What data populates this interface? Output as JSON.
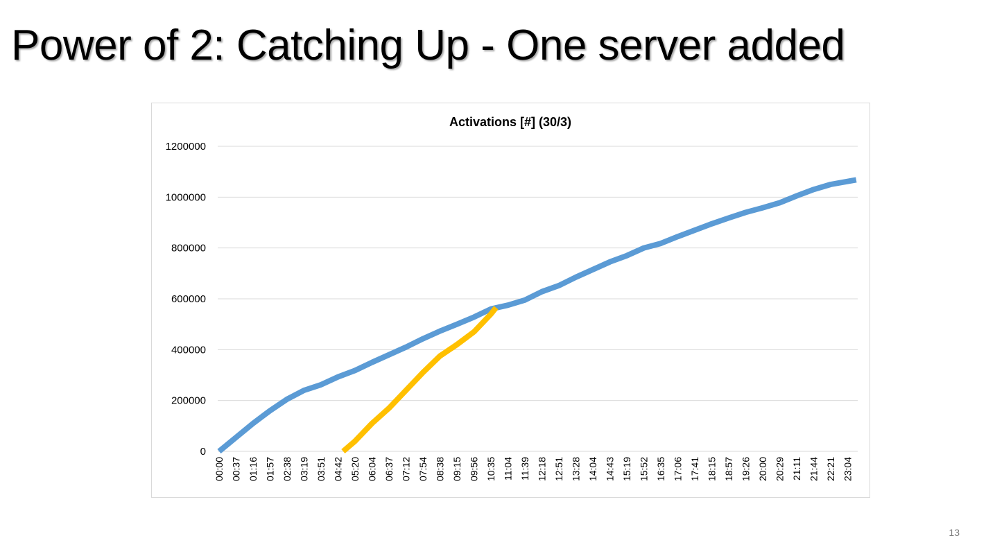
{
  "slide": {
    "title": "Power of 2: Catching Up - One server added",
    "page_number": "13"
  },
  "chart_data": {
    "type": "line",
    "title": "Activations [#] (30/3)",
    "xlabel": "",
    "ylabel": "",
    "ylim": [
      0,
      1200000
    ],
    "yticks": [
      0,
      200000,
      400000,
      600000,
      800000,
      1000000,
      1200000
    ],
    "grid": true,
    "legend": "none",
    "x_categories": [
      "00:00",
      "00:37",
      "01:16",
      "01:57",
      "02:38",
      "03:19",
      "03:51",
      "04:42",
      "05:20",
      "06:04",
      "06:37",
      "07:12",
      "07:54",
      "08:38",
      "09:15",
      "09:56",
      "10:35",
      "11:04",
      "11:39",
      "12:18",
      "12:51",
      "13:28",
      "14:04",
      "14:43",
      "15:19",
      "15:52",
      "16:35",
      "17:06",
      "17:41",
      "18:15",
      "18:57",
      "19:26",
      "20:00",
      "20:29",
      "21:11",
      "21:44",
      "22:21",
      "23:04"
    ],
    "series": [
      {
        "color": "#5b9bd5",
        "x_index": [
          0,
          1,
          2,
          3,
          4,
          5,
          6,
          7,
          8,
          9,
          10,
          11,
          12,
          13,
          14,
          15,
          16,
          17,
          18,
          19,
          20,
          21,
          22,
          23,
          24,
          25,
          26,
          27,
          28,
          29,
          30,
          31,
          32,
          33,
          34,
          35,
          36,
          37.5
        ],
        "values": [
          0,
          55000,
          110000,
          160000,
          205000,
          240000,
          262000,
          293000,
          318000,
          350000,
          380000,
          410000,
          443000,
          473000,
          500000,
          528000,
          560000,
          575000,
          595000,
          628000,
          652000,
          685000,
          715000,
          745000,
          770000,
          800000,
          818000,
          845000,
          870000,
          895000,
          918000,
          940000,
          958000,
          978000,
          1005000,
          1030000,
          1050000,
          1068000
        ]
      },
      {
        "color": "#ffc000",
        "x_index": [
          7.3,
          8,
          9,
          10,
          11,
          12,
          13,
          14,
          15,
          16,
          16.3
        ],
        "values": [
          0,
          40000,
          110000,
          170000,
          240000,
          310000,
          375000,
          420000,
          470000,
          540000,
          565000
        ]
      }
    ]
  }
}
